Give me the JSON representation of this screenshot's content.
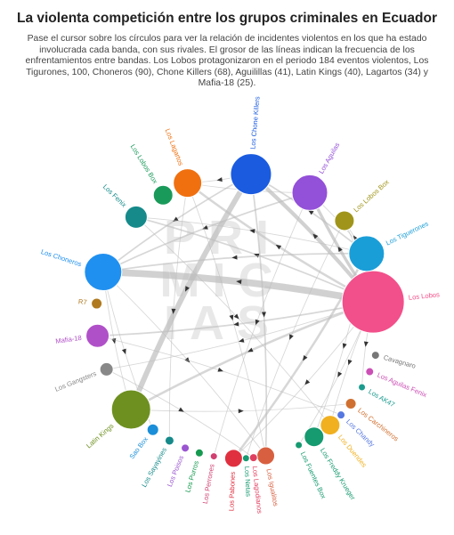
{
  "title": "La violenta competición entre los grupos criminales en Ecuador",
  "subtitle": "Pase el cursor sobre los círculos para ver la relación de incidentes violentos en los que ha estado involucrada cada banda, con sus rivales. El grosor de las líneas indican la frecuencia de los enfrentamientos entre bandas. Los Lobos protagonizaron en el periodo 184 eventos violentos, Los Tigurones, 100, Choneros (90), Chone Killers (68), Aguilillas (41), Latin Kings (40), Lagartos (34) y Mafia-18 (25).",
  "watermark": "PRIMICIAS",
  "chart_data": {
    "type": "network",
    "layout": "circular",
    "nodes": [
      {
        "name": "Los Lobos",
        "color": "#f2508a"
      },
      {
        "name": "Cavagnaro",
        "color": "#777777"
      },
      {
        "name": "Los Aguilas Fenix",
        "color": "#cc4fb5"
      },
      {
        "name": "Los AK47",
        "color": "#1a9b8e"
      },
      {
        "name": "Los Carchineros",
        "color": "#d07030"
      },
      {
        "name": "Los Chandy",
        "color": "#5577e0"
      },
      {
        "name": "Los Duendes",
        "color": "#f0b020"
      },
      {
        "name": "Los Freddy Krueger",
        "color": "#169a70"
      },
      {
        "name": "Los Fuentes Box",
        "color": "#169a70"
      },
      {
        "name": "Los Igualitos",
        "color": "#d86040"
      },
      {
        "name": "Los Lagartos",
        "color": "#f07010"
      },
      {
        "name": "Los Chone Killers",
        "color": "#1a5be0"
      },
      {
        "name": "Los Aguilas",
        "color": "#9350d8"
      },
      {
        "name": "Los Lobos Box",
        "color": "#a0951a"
      },
      {
        "name": "Los Tiguerones",
        "color": "#1a9ed8"
      },
      {
        "name": "Los Lobos Box",
        "color": "#1a9a5a"
      },
      {
        "name": "Los Fenix",
        "color": "#168a8a"
      },
      {
        "name": "Los Choneros",
        "color": "#2090f0"
      },
      {
        "name": "R7",
        "color": "#b07a20"
      },
      {
        "name": "Mafia-18",
        "color": "#b050c8"
      },
      {
        "name": "Los Gangsters",
        "color": "#888888"
      },
      {
        "name": "Latin Kings",
        "color": "#6e9020"
      },
      {
        "name": "Sao Box",
        "color": "#1a8ed8"
      },
      {
        "name": "Los Sayayines",
        "color": "#168a8a"
      },
      {
        "name": "Los Poisos",
        "color": "#9a55d0"
      },
      {
        "name": "Los Purros",
        "color": "#169a50"
      },
      {
        "name": "Los Perrones",
        "color": "#d04070"
      },
      {
        "name": "Los Pabones",
        "color": "#e03040"
      },
      {
        "name": "Los Netas",
        "color": "#169a70"
      },
      {
        "name": "Los Lagodianos",
        "color": "#e04060"
      }
    ],
    "links": [
      {
        "source": "Los Lobos",
        "target": "Los Choneros",
        "weight": 9
      },
      {
        "source": "Los Lobos",
        "target": "Los Tiguerones",
        "weight": 7
      },
      {
        "source": "Los Lobos",
        "target": "Los Chone Killers",
        "weight": 5
      },
      {
        "source": "Los Lobos",
        "target": "Los Aguilas",
        "weight": 4
      },
      {
        "source": "Los Lobos",
        "target": "Latin Kings",
        "weight": 3
      },
      {
        "source": "Los Lobos",
        "target": "Los Lagartos",
        "weight": 3
      },
      {
        "source": "Los Lobos",
        "target": "Los Fenix",
        "weight": 2
      },
      {
        "source": "Los Lobos",
        "target": "Mafia-18",
        "weight": 2
      },
      {
        "source": "Los Lobos",
        "target": "Los Lobos Box",
        "weight": 1
      },
      {
        "source": "Los Lobos",
        "target": "Los Pabones",
        "weight": 1
      },
      {
        "source": "Los Lobos",
        "target": "Los Duendes",
        "weight": 1
      },
      {
        "source": "Los Lobos",
        "target": "Los Fuentes Box",
        "weight": 1
      },
      {
        "source": "Los Lobos",
        "target": "Los AK47",
        "weight": 1
      },
      {
        "source": "Los Lobos",
        "target": "Los Gangsters",
        "weight": 1
      },
      {
        "source": "Los Chone Killers",
        "target": "Latin Kings",
        "weight": 7
      },
      {
        "source": "Los Chone Killers",
        "target": "Los Igualitos",
        "weight": 2
      },
      {
        "source": "Los Chone Killers",
        "target": "Los Choneros",
        "weight": 2
      },
      {
        "source": "Los Chone Killers",
        "target": "Los Lagartos",
        "weight": 1
      },
      {
        "source": "Los Tiguerones",
        "target": "Los Choneros",
        "weight": 2
      },
      {
        "source": "Los Tiguerones",
        "target": "Los Pabones",
        "weight": 3
      },
      {
        "source": "Los Tiguerones",
        "target": "Los Chone Killers",
        "weight": 2
      },
      {
        "source": "Los Tiguerones",
        "target": "Los Lobos Box",
        "weight": 1
      },
      {
        "source": "Los Tiguerones",
        "target": "Los Fenix",
        "weight": 1
      },
      {
        "source": "Los Tiguerones",
        "target": "Los Freddy Krueger",
        "weight": 1
      },
      {
        "source": "Los Aguilas",
        "target": "Los Choneros",
        "weight": 2
      },
      {
        "source": "Los Aguilas",
        "target": "Los Lagartos",
        "weight": 1
      },
      {
        "source": "Los Aguilas",
        "target": "Los Perrones",
        "weight": 1
      },
      {
        "source": "Los Aguilas",
        "target": "Los Tiguerones",
        "weight": 1
      },
      {
        "source": "Los Choneros",
        "target": "Latin Kings",
        "weight": 1
      },
      {
        "source": "Los Choneros",
        "target": "Los Igualitos",
        "weight": 1
      },
      {
        "source": "Los Choneros",
        "target": "Sao Box",
        "weight": 1
      },
      {
        "source": "Los Lagartos",
        "target": "Los Igualitos",
        "weight": 1
      },
      {
        "source": "Los Lagartos",
        "target": "Los Sayayines",
        "weight": 1
      },
      {
        "source": "Los Fenix",
        "target": "Los Duendes",
        "weight": 1
      },
      {
        "source": "Los Lobos Box",
        "target": "Los Netas",
        "weight": 1
      },
      {
        "source": "Mafia-18",
        "target": "Los Chandy",
        "weight": 1
      },
      {
        "source": "Latin Kings",
        "target": "Los Carchineros",
        "weight": 1
      },
      {
        "source": "Los Gangsters",
        "target": "Los Lagodianos",
        "weight": 1
      }
    ]
  }
}
